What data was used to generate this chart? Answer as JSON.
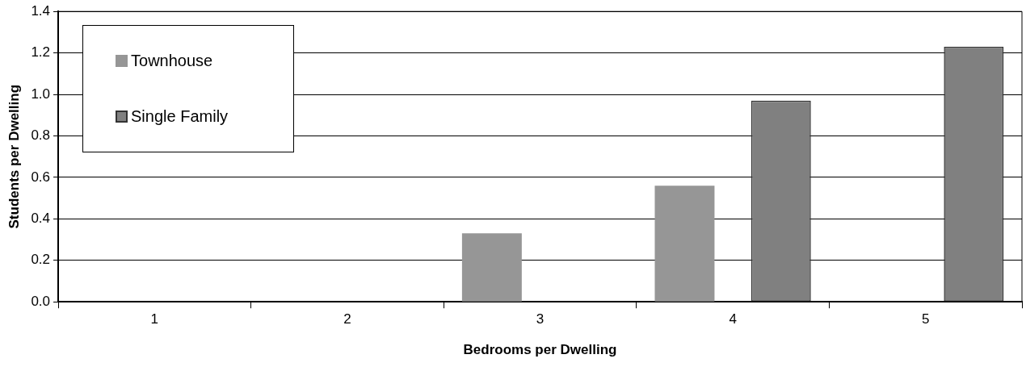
{
  "chart_data": {
    "type": "bar",
    "xlabel": "Bedrooms per Dwelling",
    "ylabel": "Students per Dwelling",
    "categories": [
      "1",
      "2",
      "3",
      "4",
      "5"
    ],
    "series": [
      {
        "name": "Townhouse",
        "color": "#969696",
        "values": [
          null,
          null,
          0.33,
          0.56,
          null
        ]
      },
      {
        "name": "Single Family",
        "color": "#808080",
        "values": [
          null,
          null,
          null,
          0.97,
          1.23
        ]
      }
    ],
    "ylim": [
      0,
      1.4
    ],
    "yticks": [
      {
        "value": 0,
        "label": "0.0"
      },
      {
        "value": 0.2,
        "label": "0.2"
      },
      {
        "value": 0.4,
        "label": "0.4"
      },
      {
        "value": 0.6,
        "label": "0.6"
      },
      {
        "value": 0.8,
        "label": "0.8"
      },
      {
        "value": 1.0,
        "label": "1.0"
      },
      {
        "value": 1.2,
        "label": "1.2"
      },
      {
        "value": 1.4,
        "label": "1.4"
      }
    ],
    "grid": "y",
    "legend": "top left"
  }
}
